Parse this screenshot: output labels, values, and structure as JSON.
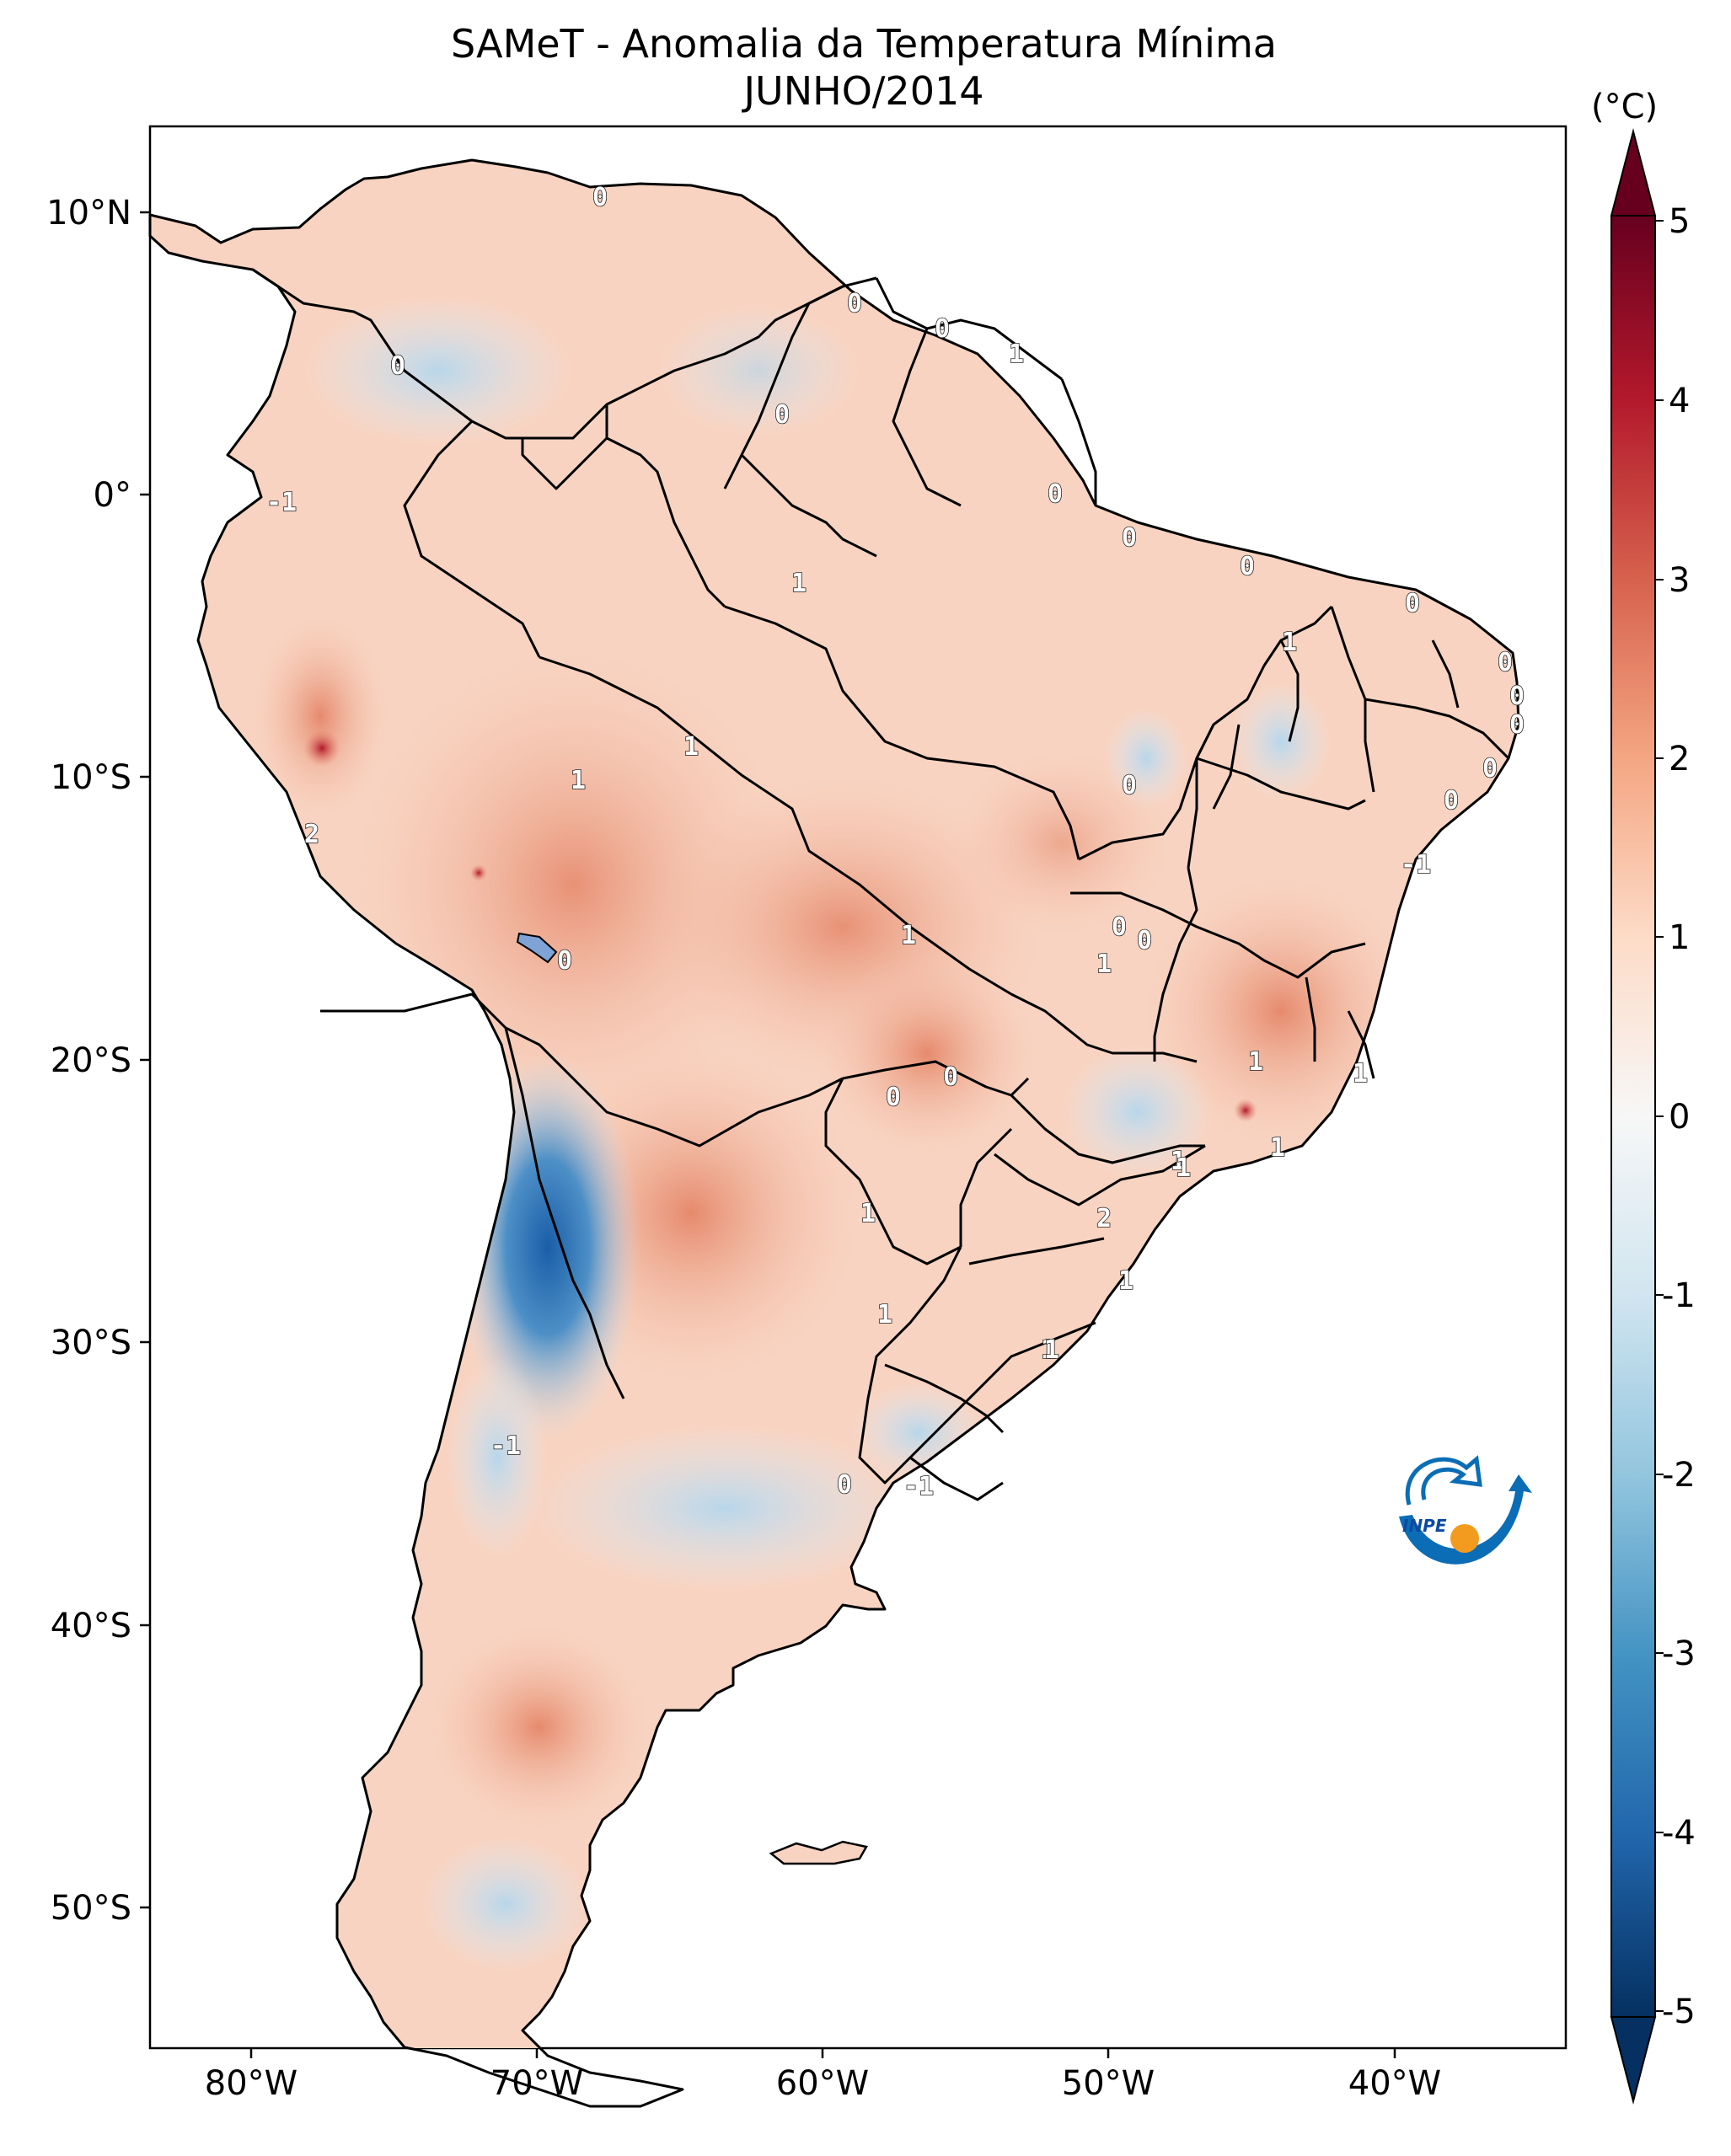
{
  "title_line1": "SAMeT - Anomalia da Temperatura Mínima",
  "title_line2": "JUNHO/2014",
  "colorbar": {
    "unit": "(°C)",
    "ticks": [
      "5",
      "4",
      "3",
      "2",
      "1",
      "0",
      "-1",
      "-2",
      "-3",
      "-4",
      "-5"
    ],
    "colors": [
      "#67001f",
      "#b2182b",
      "#d6604d",
      "#f4a582",
      "#fddbc7",
      "#f7f7f7",
      "#d1e5f0",
      "#92c5de",
      "#4393c3",
      "#2166ac",
      "#053061"
    ]
  },
  "axes": {
    "lon_labels": [
      "80°W",
      "70°W",
      "60°W",
      "50°W",
      "40°W"
    ],
    "lat_labels": [
      "10°N",
      "0°",
      "10°S",
      "20°S",
      "30°S",
      "40°S",
      "50°S"
    ]
  },
  "contour_labels": [
    "0",
    "0",
    "0",
    "0",
    "1",
    "0",
    "0",
    "0",
    "-1",
    "1",
    "0",
    "0",
    "0",
    "1",
    "0",
    "1",
    "1",
    "0",
    "0",
    "0",
    "1",
    "0",
    "0",
    "1",
    "0",
    "1",
    "0",
    "-1",
    "2",
    "1",
    "0",
    "1",
    "1",
    "1",
    "1",
    "0",
    "2",
    "1",
    "1",
    "-1",
    "0",
    "-1",
    "1",
    "1"
  ],
  "logo": {
    "text": "INPE"
  }
}
